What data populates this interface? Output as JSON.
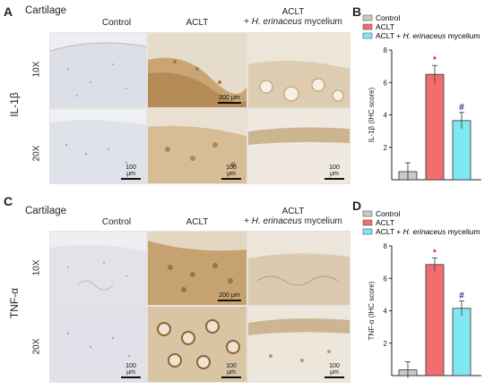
{
  "panels": {
    "A": {
      "label": "A",
      "tissue": "Cartilage",
      "marker": "IL-1β"
    },
    "B": {
      "label": "B"
    },
    "C": {
      "label": "C",
      "tissue": "Cartilage",
      "marker": "TNF-α"
    },
    "D": {
      "label": "D"
    }
  },
  "columns": [
    "Control",
    "ACLT",
    "ACLT",
    "+ H. erinaceus mycelium"
  ],
  "col_line2_prefix": "+ ",
  "col_line2_italic": "H. erinaceus",
  "col_line2_suffix": " mycelium",
  "rows": [
    "10X",
    "20X"
  ],
  "scale_bars": {
    "low": "200 μm",
    "high": "100 μm"
  },
  "legend": {
    "items": [
      "Control",
      "ACLT",
      "ACLT + H. erinaceus mycelium"
    ],
    "colors": [
      "#c9c9c9",
      "#f26d6d",
      "#7fe6f2"
    ]
  },
  "chart_data": [
    {
      "type": "bar",
      "panel": "B",
      "categories": [
        "Control",
        "ACLT",
        "ACLT + H. erinaceus mycelium"
      ],
      "values": [
        0.5,
        6.5,
        3.65
      ],
      "errors": [
        0.55,
        0.55,
        0.5
      ],
      "significance": [
        "",
        "*",
        "#"
      ],
      "ylabel": "IL-1β (IHC score)",
      "ylim": [
        0,
        8
      ],
      "yticks": [
        2,
        4,
        6,
        8
      ],
      "colors": [
        "#c9c9c9",
        "#f26d6d",
        "#7fe6f2"
      ]
    },
    {
      "type": "bar",
      "panel": "D",
      "categories": [
        "Control",
        "ACLT",
        "ACLT + H. erinaceus mycelium"
      ],
      "values": [
        0.35,
        6.85,
        4.15
      ],
      "errors": [
        0.5,
        0.4,
        0.45
      ],
      "significance": [
        "",
        "*",
        "#"
      ],
      "ylabel": "TNF-α (IHC score)",
      "ylim": [
        0,
        8
      ],
      "yticks": [
        2,
        4,
        6,
        8
      ],
      "colors": [
        "#c9c9c9",
        "#f26d6d",
        "#7fe6f2"
      ]
    }
  ]
}
